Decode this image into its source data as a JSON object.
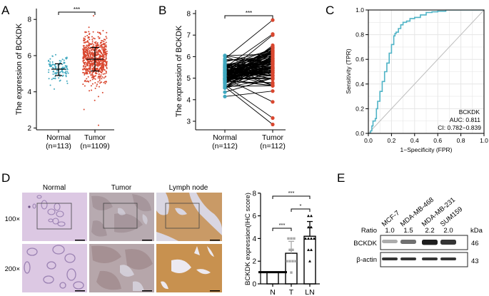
{
  "panels": {
    "A": "A",
    "B": "B",
    "C": "C",
    "D": "D",
    "E": "E"
  },
  "colors": {
    "normal": "#3fa8bf",
    "tumor": "#d9472f",
    "roc": "#4fb3c6",
    "diag": "#bdbdbd"
  },
  "chart_data": [
    {
      "panel": "A",
      "type": "scatter",
      "ylabel": "The expression of BCKDK",
      "yticks": [
        2,
        4,
        6,
        8
      ],
      "ylim": [
        1.9,
        8.6
      ],
      "categories": [
        "Normal",
        "Tumor"
      ],
      "sublabels": [
        "(n=113)",
        "(n=1109)"
      ],
      "significance": "***",
      "series": [
        {
          "name": "Normal",
          "n": 113,
          "mean": 5.25,
          "sd_low": 4.9,
          "sd_high": 5.55,
          "min": 4.15,
          "max": 6.05
        },
        {
          "name": "Tumor",
          "n": 1109,
          "mean": 5.8,
          "sd_low": 5.15,
          "sd_high": 6.45,
          "min": 2.15,
          "max": 8.2
        }
      ]
    },
    {
      "panel": "B",
      "type": "line",
      "ylabel": "The expression of BCKDK",
      "yticks": [
        3,
        4,
        5,
        6,
        7,
        8
      ],
      "ylim": [
        2.6,
        8.1
      ],
      "categories": [
        "Normal",
        "Tumor"
      ],
      "sublabels": [
        "(n=112)",
        "(n=112)"
      ],
      "significance": "***",
      "normal_range": [
        4.15,
        6.05
      ],
      "tumor_range": [
        2.85,
        7.7
      ],
      "tumor_outliers": [
        7.7,
        7.05,
        7.0,
        4.4,
        3.9,
        3.15,
        2.85
      ]
    },
    {
      "panel": "C",
      "type": "line",
      "xlabel": "1−Specificity (FPR)",
      "ylabel": "Sensitivity (TPR)",
      "xticks": [
        "0.0",
        "0.2",
        "0.4",
        "0.6",
        "0.8",
        "1.0"
      ],
      "yticks": [
        "0.0",
        "0.2",
        "0.4",
        "0.6",
        "0.8",
        "1.0"
      ],
      "xlim": [
        0,
        1
      ],
      "ylim": [
        0,
        1
      ],
      "grid": true,
      "legend": {
        "name": "BCKDK",
        "auc": "AUC: 0.811",
        "ci": "CI: 0.782−0.839"
      },
      "roc_x": [
        0,
        0.02,
        0.03,
        0.04,
        0.06,
        0.07,
        0.08,
        0.1,
        0.12,
        0.14,
        0.16,
        0.18,
        0.2,
        0.22,
        0.23,
        0.24,
        0.26,
        0.28,
        0.3,
        0.33,
        0.36,
        0.4,
        0.45,
        0.5,
        0.55,
        0.6,
        0.67,
        0.8,
        1.0
      ],
      "roc_y": [
        0,
        0.02,
        0.06,
        0.1,
        0.12,
        0.2,
        0.26,
        0.34,
        0.42,
        0.5,
        0.57,
        0.65,
        0.72,
        0.79,
        0.81,
        0.82,
        0.85,
        0.88,
        0.9,
        0.91,
        0.93,
        0.94,
        0.96,
        0.98,
        0.985,
        0.99,
        1.0,
        1.0,
        1.0
      ]
    },
    {
      "panel": "D",
      "type": "bar",
      "ylabel": "BCKDK expression(IHC score)",
      "yticks": [
        0,
        2,
        4,
        6,
        8
      ],
      "ylim": [
        0,
        8
      ],
      "categories": [
        "N",
        "T",
        "LN"
      ],
      "values": [
        1.0,
        2.7,
        4.2
      ],
      "errors": [
        0.05,
        1.05,
        1.3
      ],
      "points": [
        [
          1,
          1,
          1,
          1,
          1,
          1,
          1,
          1,
          1,
          1
        ],
        [
          1,
          2,
          2,
          2,
          2,
          3,
          3,
          4,
          4,
          4
        ],
        [
          2,
          3,
          3,
          4,
          4,
          4,
          4,
          5,
          5,
          6,
          6
        ]
      ],
      "comparisons": [
        {
          "pair": [
            "N",
            "LN"
          ],
          "label": "***"
        },
        {
          "pair": [
            "T",
            "LN"
          ],
          "label": "*"
        },
        {
          "pair": [
            "N",
            "T"
          ],
          "label": "***"
        }
      ]
    }
  ],
  "ihc": {
    "columns": [
      "Normal",
      "Tumor",
      "Lymph node"
    ],
    "rows": [
      "100×",
      "200×"
    ]
  },
  "western": {
    "cell_lines": [
      "MCF-7",
      "MDA-MB-468",
      "MDA-MB-231",
      "SUM159"
    ],
    "ratio_label": "Ratio",
    "ratios": [
      "1.0",
      "1.5",
      "2.2",
      "2.0"
    ],
    "ratio_values": [
      1.0,
      1.5,
      2.2,
      2.0
    ],
    "kda_label": "kDa",
    "bands": [
      {
        "name": "BCKDK",
        "kda": "46"
      },
      {
        "name": "β-actin",
        "kda": "43"
      }
    ]
  }
}
